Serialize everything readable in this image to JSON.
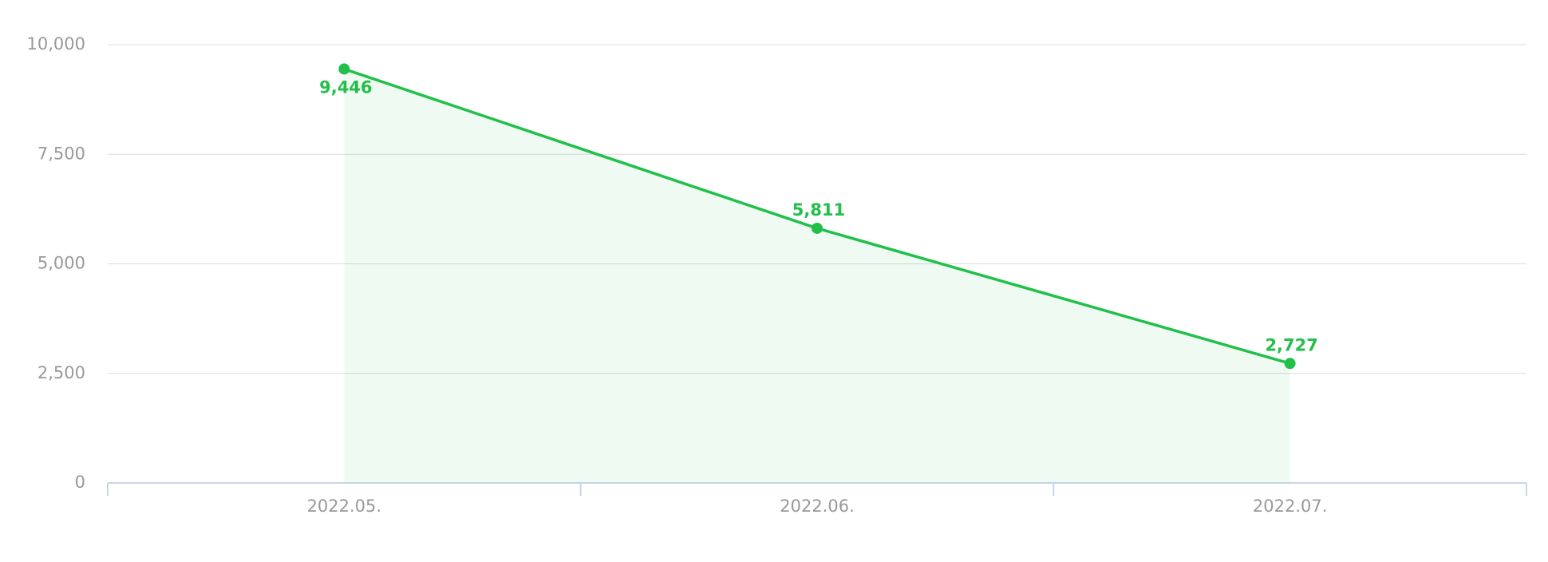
{
  "chart_data": {
    "type": "line",
    "categories": [
      "2022.05.",
      "2022.06.",
      "2022.07."
    ],
    "values": [
      9446,
      5811,
      2727
    ],
    "value_labels": [
      "9,446",
      "5,811",
      "2,727"
    ],
    "color": "#22c04a",
    "area": true,
    "ylim": [
      0,
      10000
    ],
    "yticks": [
      0,
      {
        "value": 2500,
        "label": "2,500"
      },
      {
        "value": 5000,
        "label": "5,000"
      },
      {
        "value": 7500,
        "label": "7,500"
      },
      {
        "value": 10000,
        "label": "10,000"
      }
    ],
    "grid": true
  }
}
